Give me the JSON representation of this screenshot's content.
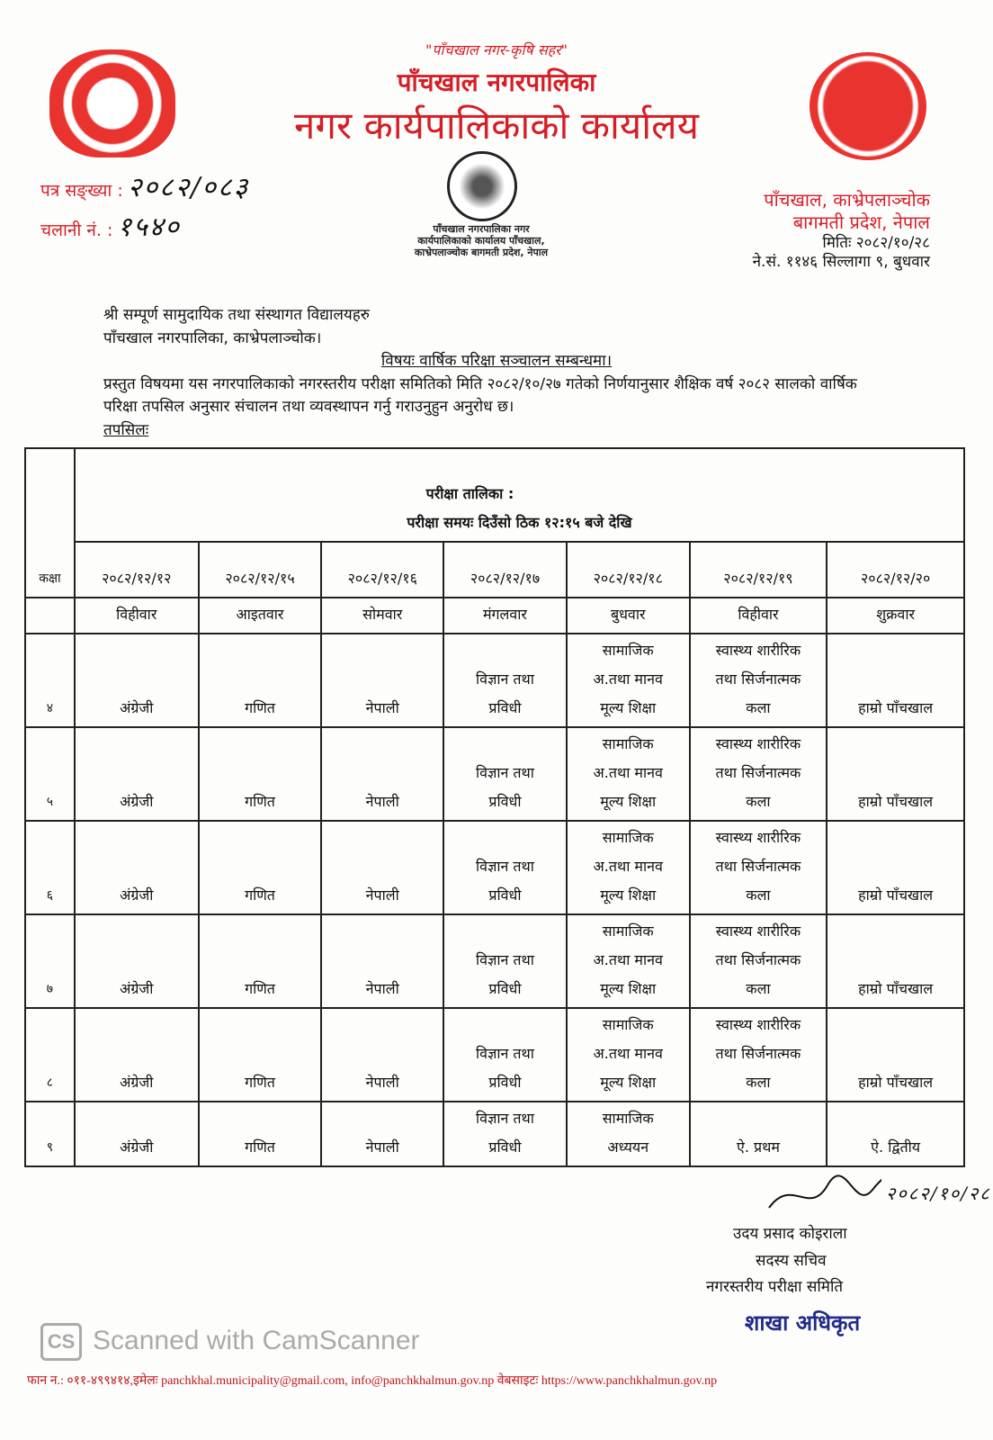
{
  "letterhead": {
    "motto": "\"पाँचखाल नगर-कृषि सहर\"",
    "municipality": "पाँचखाल नगरपालिका",
    "office": "नगर कार्यपालिकाको कार्यालय",
    "address_line1": "पाँचखाल, काभ्रेपलाञ्चोक",
    "address_line2": "बागमती प्रदेश, नेपाल",
    "brand_color": "#d61e26"
  },
  "ref": {
    "letter_no_label": "पत्र सङ्ख्या :",
    "letter_no_value": "२०८२/०८३",
    "dispatch_no_label": "चलानी नं. :",
    "dispatch_no_value": "१५४०"
  },
  "stamp": {
    "text": "पाँचखाल नगरपालिका नगर कार्यपालिकाको कार्यालय पाँचखाल, काभ्रेपलाञ्चोक बागमती प्रदेश, नेपाल"
  },
  "date": {
    "miti": "मितिः २०८२/१०/२८",
    "nepal_sambat": "ने.सं. ११४६ सिल्लागा ९, बुधवार"
  },
  "addressee": {
    "line1": "श्री सम्पूर्ण सामुदायिक तथा संस्थागत विद्यालयहरु",
    "line2": "पाँचखाल नगरपालिका, काभ्रेपलाञ्चोक।"
  },
  "subject": "विषयः वार्षिक परिक्षा सञ्चालन सम्बन्धमा।",
  "body": "प्रस्तुत विषयमा यस नगरपालिकाको नगरस्तरीय परीक्षा समितिको मिति २०८२/१०/२७  गतेको निर्णयानुसार शैक्षिक वर्ष २०८२ सालको वार्षिक परिक्षा  तपसिल अनुसार संचालन तथा व्यवस्थापन गर्नु गराउनुहुन अनुरोध छ।",
  "details_label": "तपसिलः",
  "schedule": {
    "title": "परीक्षा तालिका :",
    "time": "परीक्षा समयः दिउँसो ठिक १२:१५ बजे देखि",
    "class_header": "कक्षा",
    "dates": [
      "२०८२/१२/१२",
      "२०८२/१२/१५",
      "२०८२/१२/१६",
      "२०८२/१२/१७",
      "२०८२/१२/१८",
      "२०८२/१२/१९",
      "२०८२/१२/२०"
    ],
    "days": [
      "विहीवार",
      "आइतवार",
      "सोमवार",
      "मंगलवार",
      "बुधवार",
      "विहीवार",
      "शुक्रवार"
    ],
    "rows": [
      {
        "class": "४",
        "subjects": [
          "अंग्रेजी",
          "गणित",
          "नेपाली",
          "विज्ञान तथा\nप्रविधी",
          "सामाजिक\nअ.तथा मानव\nमूल्य शिक्षा",
          "स्वास्थ्य शारीरिक\nतथा सिर्जनात्मक\nकला",
          "हाम्रो पाँचखाल"
        ]
      },
      {
        "class": "५",
        "subjects": [
          "अंग्रेजी",
          "गणित",
          "नेपाली",
          "विज्ञान तथा\nप्रविधी",
          "सामाजिक\nअ.तथा मानव\nमूल्य शिक्षा",
          "स्वास्थ्य शारीरिक\nतथा सिर्जनात्मक\nकला",
          "हाम्रो पाँचखाल"
        ]
      },
      {
        "class": "६",
        "subjects": [
          "अंग्रेजी",
          "गणित",
          "नेपाली",
          "विज्ञान तथा\nप्रविधी",
          "सामाजिक\nअ.तथा मानव\nमूल्य शिक्षा",
          "स्वास्थ्य शारीरिक\nतथा सिर्जनात्मक\nकला",
          "हाम्रो पाँचखाल"
        ]
      },
      {
        "class": "७",
        "subjects": [
          "अंग्रेजी",
          "गणित",
          "नेपाली",
          "विज्ञान तथा\nप्रविधी",
          "सामाजिक\nअ.तथा मानव\nमूल्य शिक्षा",
          "स्वास्थ्य शारीरिक\nतथा सिर्जनात्मक\nकला",
          "हाम्रो पाँचखाल"
        ]
      },
      {
        "class": "८",
        "subjects": [
          "अंग्रेजी",
          "गणित",
          "नेपाली",
          "विज्ञान तथा\nप्रविधी",
          "सामाजिक\nअ.तथा मानव\nमूल्य शिक्षा",
          "स्वास्थ्य शारीरिक\nतथा सिर्जनात्मक\nकला",
          "हाम्रो पाँचखाल"
        ]
      },
      {
        "class": "९",
        "subjects": [
          "अंग्रेजी",
          "गणित",
          "नेपाली",
          "विज्ञान तथा\nप्रविधी",
          "सामाजिक\nअध्ययन",
          "ऐ. प्रथम",
          "ऐ. द्वितीय"
        ]
      }
    ]
  },
  "signature": {
    "handwritten_date": "२०८२/१०/२८",
    "name": "उदय प्रसाद कोइराला",
    "designation": "सदस्य सचिव",
    "committee": "नगरस्तरीय परीक्षा समिति",
    "stamp_text": "शाखा अधिकृत",
    "stamp_color": "#1f2a8a"
  },
  "watermark": {
    "logo": "CS",
    "text": "Scanned with CamScanner"
  },
  "footer": "फान न.: ०११-४९९४१४,इमेलः panchkhal.municipality@gmail.com, info@panchkhalmun.gov.np वेबसाइटः https://www.panchkhalmun.gov.np"
}
